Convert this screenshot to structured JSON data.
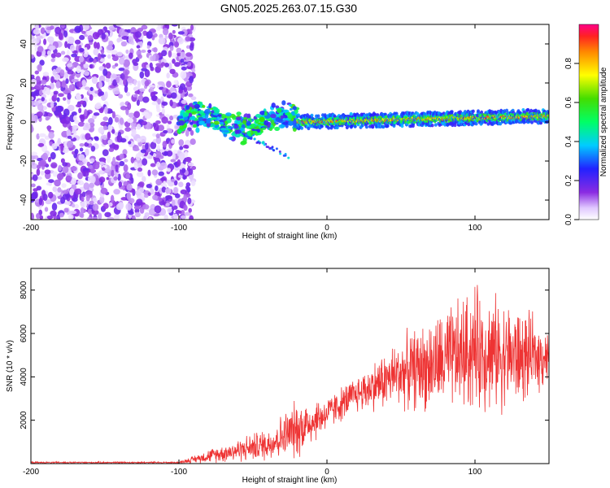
{
  "title": "GN05.2025.263.07.15.G30",
  "chart_data": [
    {
      "type": "heatmap",
      "title": "GN05.2025.263.07.15.G30",
      "xlabel": "Height of straight line (km)",
      "ylabel": "Frequency (Hz)",
      "xlim": [
        -200,
        150
      ],
      "ylim": [
        -50,
        50
      ],
      "x_ticks": [
        "-200",
        "-100",
        "0",
        "100"
      ],
      "y_ticks": [
        "40",
        "20",
        "0",
        "-20",
        "-40"
      ],
      "colorbar": {
        "label": "Normalized spectral amplitude",
        "range": [
          0,
          1
        ],
        "ticks": [
          "0.0",
          "0.2",
          "0.4",
          "0.6",
          "0.8"
        ]
      },
      "regions": [
        {
          "name": "noise",
          "x_range": [
            -200,
            -100
          ],
          "freq_range": [
            -50,
            50
          ],
          "amplitude": 0.15
        },
        {
          "name": "transition",
          "x_range": [
            -100,
            -20
          ],
          "freq_range": [
            -10,
            12
          ],
          "amplitude": 0.45
        },
        {
          "name": "signal-band",
          "x_range": [
            -20,
            150
          ],
          "center_freq_start": 0,
          "center_freq_end": 3,
          "amplitude": 0.9
        }
      ],
      "features": [
        {
          "name": "streak",
          "x": [
            -60,
            -25
          ],
          "freq": [
            -5,
            -18
          ],
          "amplitude": 0.3
        }
      ]
    },
    {
      "type": "line",
      "xlabel": "Height of straight line (km)",
      "ylabel": "SNR (10 * v/v)",
      "xlim": [
        -200,
        150
      ],
      "ylim": [
        0,
        9000
      ],
      "x_ticks": [
        "-200",
        "-100",
        "0",
        "100"
      ],
      "y_ticks": [
        "8000",
        "6000",
        "4000",
        "2000"
      ],
      "color": "#ee3333",
      "trend": [
        {
          "x": -200,
          "base": 50,
          "amp": 40
        },
        {
          "x": -100,
          "base": 50,
          "amp": 50
        },
        {
          "x": -80,
          "base": 350,
          "amp": 350
        },
        {
          "x": -40,
          "base": 900,
          "amp": 900
        },
        {
          "x": -20,
          "base": 1600,
          "amp": 1600
        },
        {
          "x": 0,
          "base": 2300,
          "amp": 900
        },
        {
          "x": 20,
          "base": 3200,
          "amp": 1000
        },
        {
          "x": 50,
          "base": 4200,
          "amp": 1900
        },
        {
          "x": 80,
          "base": 4700,
          "amp": 2800
        },
        {
          "x": 100,
          "base": 5300,
          "amp": 3400
        },
        {
          "x": 130,
          "base": 4900,
          "amp": 2700
        },
        {
          "x": 150,
          "base": 5000,
          "amp": 1500
        }
      ]
    }
  ]
}
